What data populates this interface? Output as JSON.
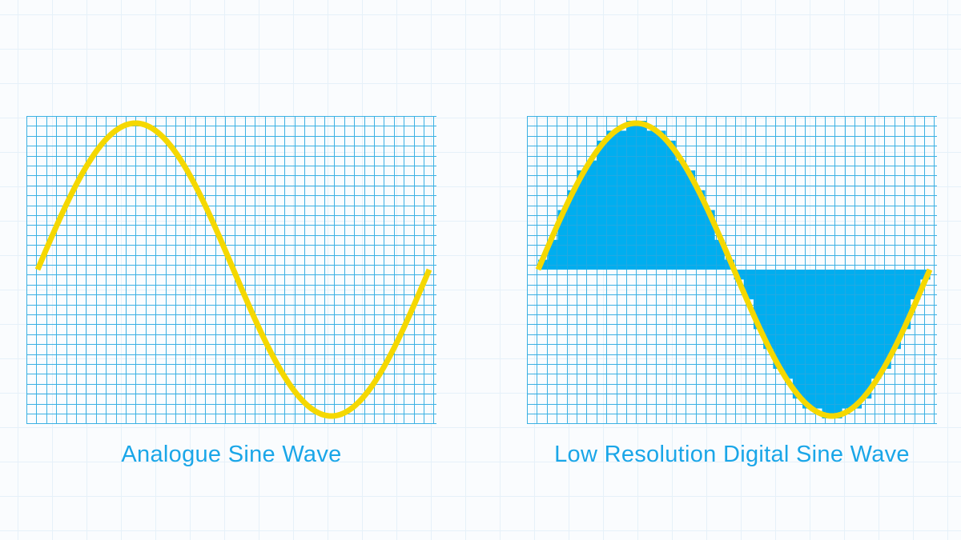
{
  "colors": {
    "page_background": "#fafcfe",
    "grid_line": "#26a9e0",
    "wave": "#f5d800",
    "quantized_fill": "#00aeef",
    "caption": "#1aa6e8"
  },
  "panels": {
    "analogue": {
      "caption": "Analogue Sine Wave",
      "wave": {
        "function": "sine",
        "cycles": 1,
        "amplitude": 1
      }
    },
    "digital": {
      "caption": "Low Resolution Digital Sine Wave",
      "wave": {
        "function": "sine",
        "cycles": 1,
        "amplitude": 1
      },
      "quantization": {
        "steps_per_cycle": 40
      }
    }
  }
}
